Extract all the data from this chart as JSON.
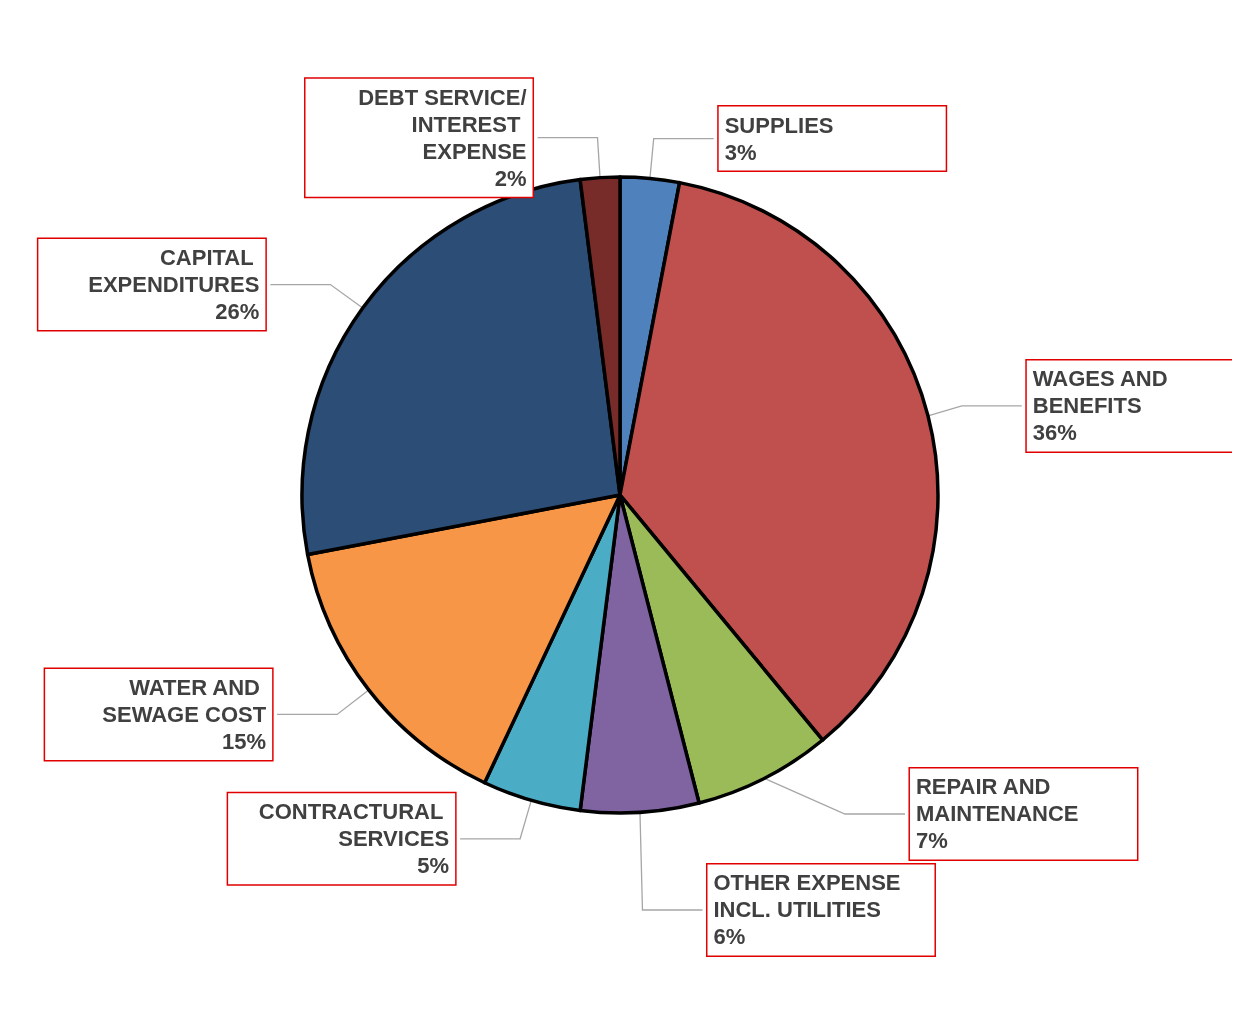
{
  "chart_data": {
    "type": "pie",
    "categories": [
      "SUPPLIES",
      "WAGES AND BENEFITS",
      "REPAIR AND MAINTENANCE",
      "OTHER EXPENSE INCL. UTILITIES",
      "CONTRACTURAL SERVICES",
      "WATER AND SEWAGE COST",
      "CAPITAL EXPENDITURES",
      "DEBT SERVICE/INTEREST EXPENSE"
    ],
    "values": [
      3,
      36,
      7,
      6,
      5,
      15,
      26,
      2
    ],
    "colors": [
      "#4f81bd",
      "#c0504d",
      "#9bbb59",
      "#8064a2",
      "#4bacc6",
      "#f79646",
      "#2c4d75",
      "#772c2a"
    ],
    "value_labels": [
      "3%",
      "36%",
      "7%",
      "6%",
      "5%",
      "15%",
      "26%",
      "2%"
    ],
    "legend": false
  }
}
